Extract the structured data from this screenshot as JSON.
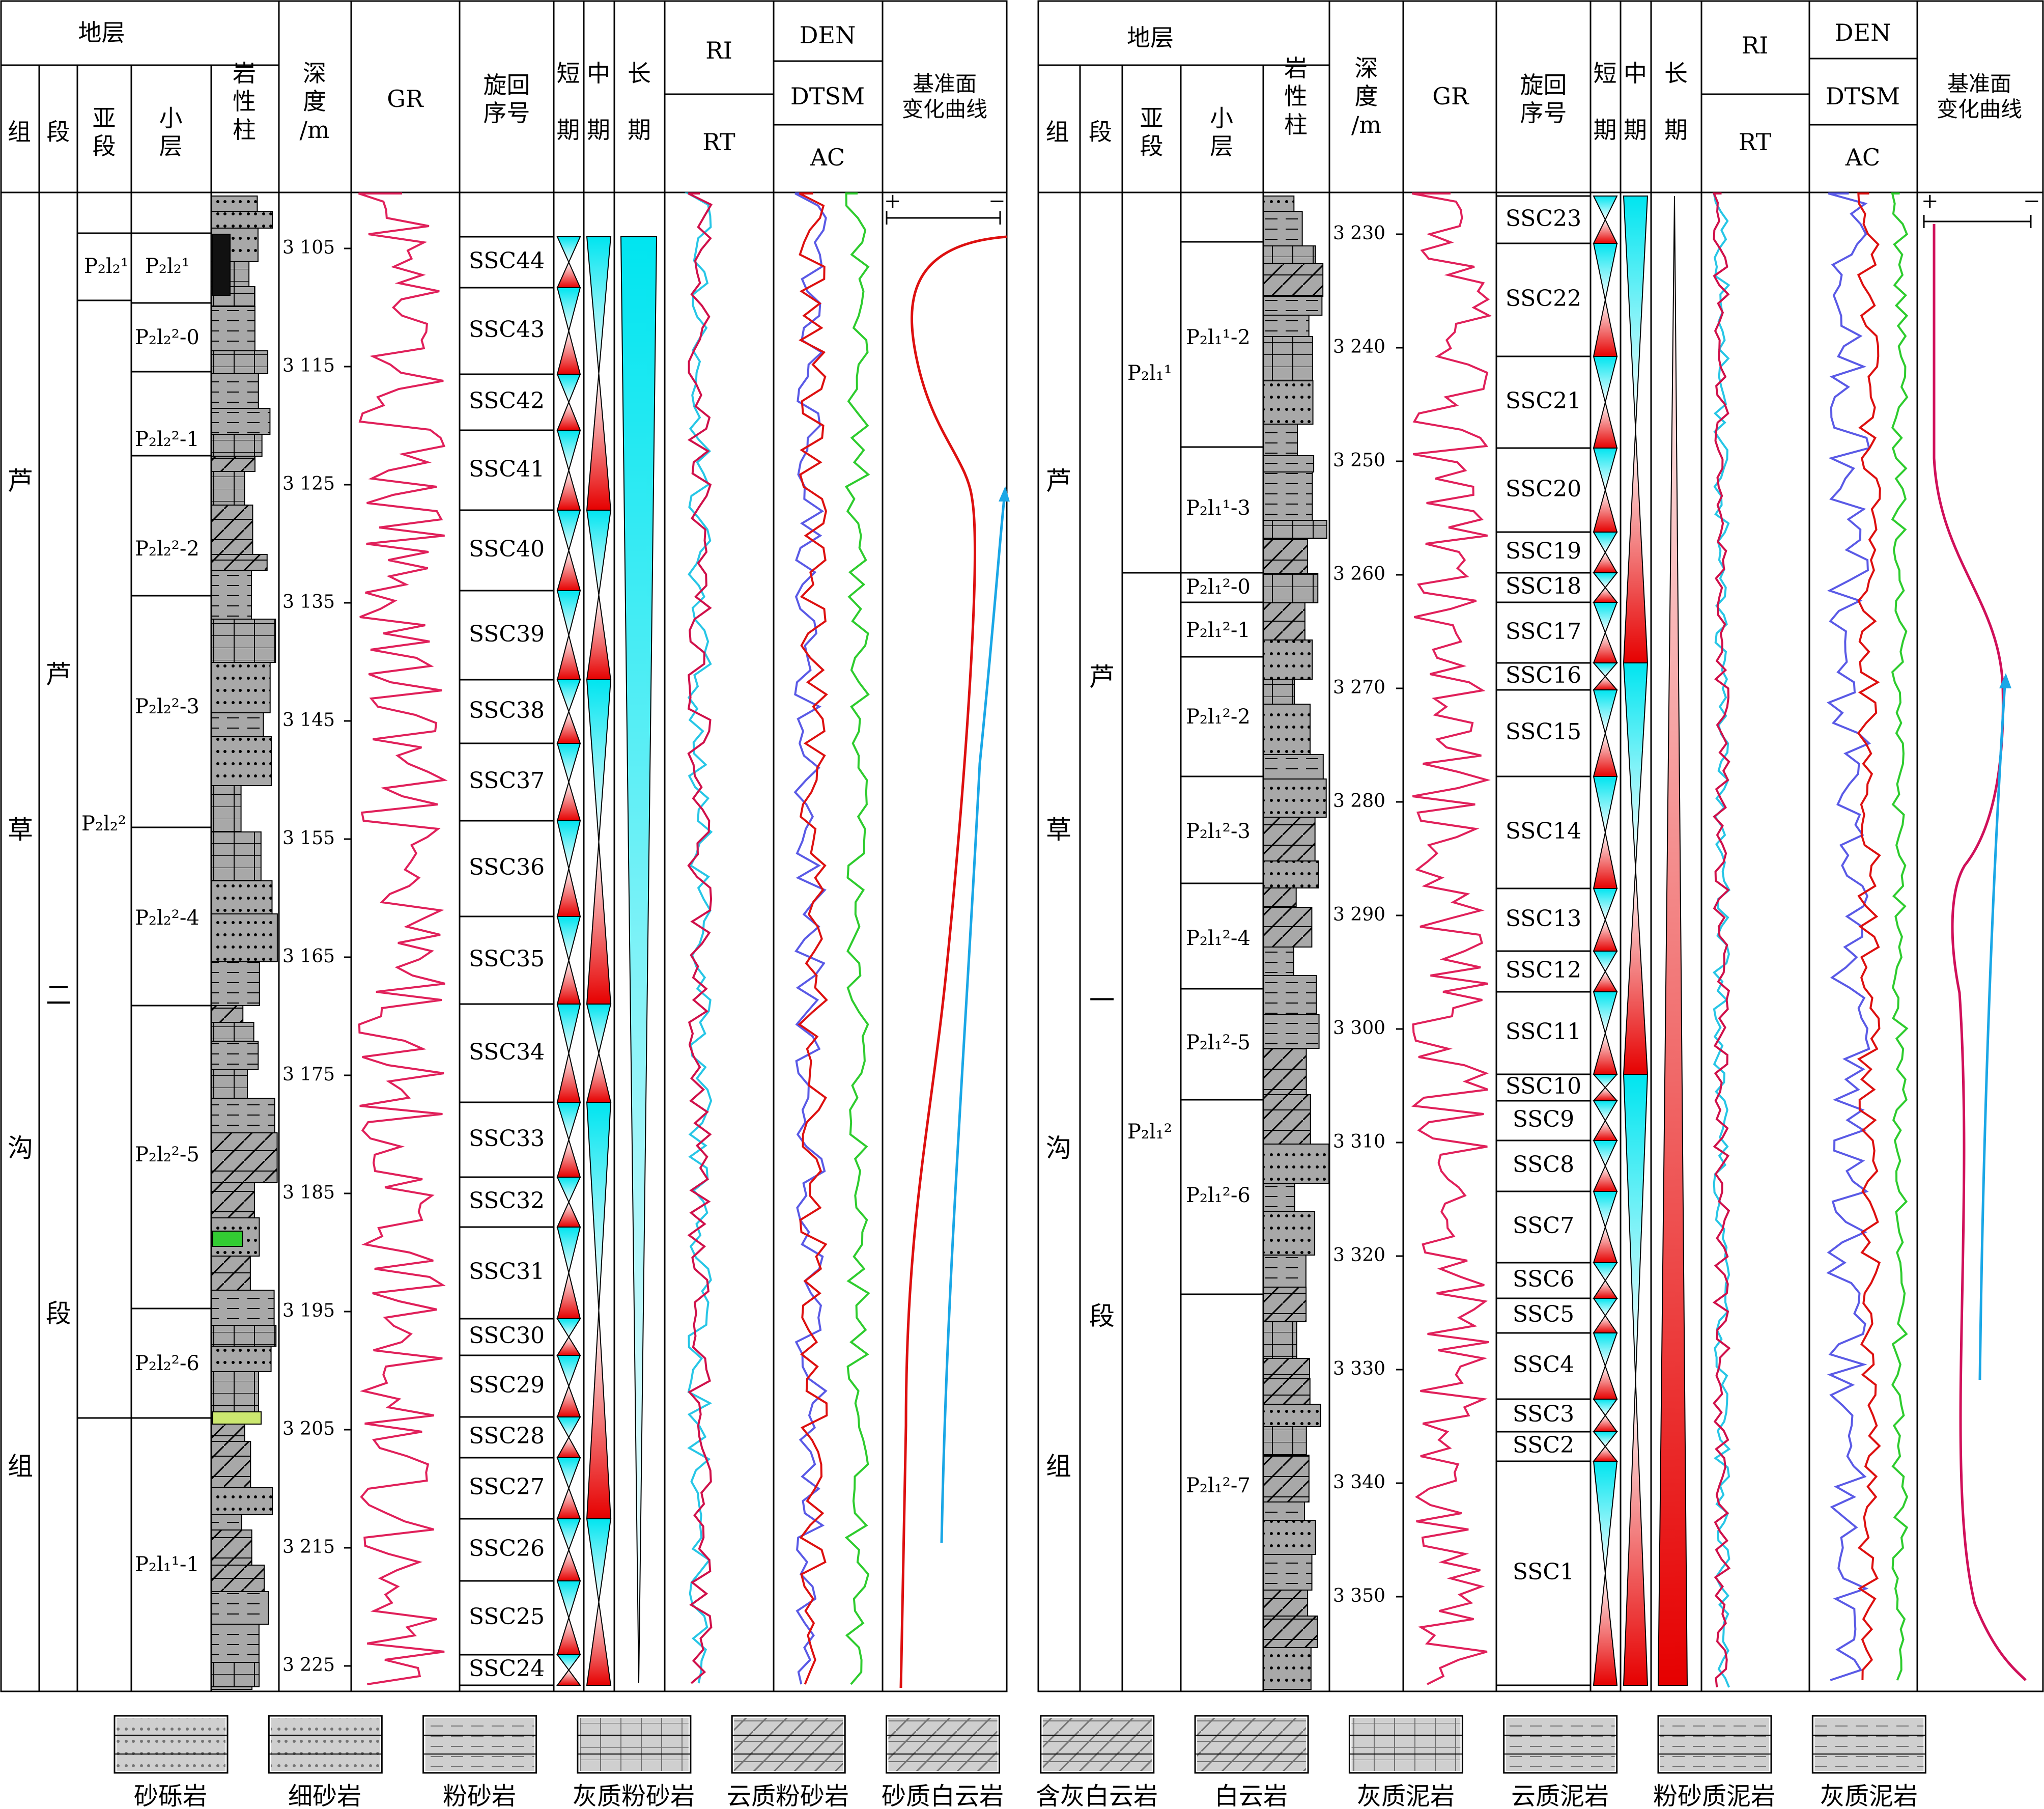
{
  "left_panel": {
    "headers": {
      "stratum": "地层",
      "formation": "组",
      "member": "段",
      "submember": "亚\n段",
      "layer": "小\n层",
      "lithology": "岩\n性\n柱",
      "depth": "深\n度\n/m",
      "gr": "GR",
      "cycle_no": "旋回\n序号",
      "short_term": "短\n\n期",
      "mid_term": "中\n\n期",
      "long_term": "长\n\n期",
      "ri": "RI",
      "rt": "RT",
      "den": "DEN",
      "dtsm": "DTSM",
      "ac": "AC",
      "base_level": "基准面\n变化曲线"
    },
    "formation_chars": [
      "芦",
      "草",
      "沟",
      "组"
    ],
    "member_chars": [
      "芦",
      "二",
      "段"
    ],
    "submembers": [
      "P₂l₂¹",
      "P₂l₂²"
    ],
    "layers": [
      "P₂l₂¹",
      "P₂l₂²-0",
      "P₂l₂²-1",
      "P₂l₂²-2",
      "P₂l₂²-3",
      "P₂l₂²-4",
      "P₂l₂²-5",
      "P₂l₂²-6",
      "P₂l₁¹-1"
    ],
    "depth_ticks": [
      "3 105",
      "3 115",
      "3 125",
      "3 135",
      "3 145",
      "3 155",
      "3 165",
      "3 175",
      "3 185",
      "3 195",
      "3 205",
      "3 215",
      "3 225"
    ],
    "cycles": [
      "SSC44",
      "SSC43",
      "SSC42",
      "SSC41",
      "SSC40",
      "SSC39",
      "SSC38",
      "SSC37",
      "SSC36",
      "SSC35",
      "SSC34",
      "SSC33",
      "SSC32",
      "SSC31",
      "SSC30",
      "SSC29",
      "SSC28",
      "SSC27",
      "SSC26",
      "SSC25",
      "SSC24"
    ],
    "plus": "+",
    "minus": "−"
  },
  "right_panel": {
    "headers": {
      "stratum": "地层",
      "formation": "组",
      "member": "段",
      "submember": "亚\n段",
      "layer": "小\n层",
      "lithology": "岩\n性\n柱",
      "depth": "深\n度\n/m",
      "gr": "GR",
      "cycle_no": "旋回\n序号",
      "short_term": "短\n\n期",
      "mid_term": "中\n\n期",
      "long_term": "长\n\n期",
      "ri": "RI",
      "rt": "RT",
      "den": "DEN",
      "dtsm": "DTSM",
      "ac": "AC",
      "base_level": "基准面\n变化曲线"
    },
    "formation_chars": [
      "芦",
      "草",
      "沟",
      "组"
    ],
    "member_chars": [
      "芦",
      "一",
      "段"
    ],
    "submembers": [
      "P₂l₁¹",
      "P₂l₁²"
    ],
    "layers": [
      "P₂l₁¹-2",
      "P₂l₁¹-3",
      "P₂l₁²-0",
      "P₂l₁²-1",
      "P₂l₁²-2",
      "P₂l₁²-3",
      "P₂l₁²-4",
      "P₂l₁²-5",
      "P₂l₁²-6",
      "P₂l₁²-7"
    ],
    "depth_ticks": [
      "3 230",
      "3 240",
      "3 250",
      "3 260",
      "3 270",
      "3 280",
      "3 290",
      "3 300",
      "3 310",
      "3 320",
      "3 330",
      "3 340",
      "3 350"
    ],
    "cycles": [
      "SSC23",
      "SSC22",
      "SSC21",
      "SSC20",
      "SSC19",
      "SSC18",
      "SSC17",
      "SSC16",
      "SSC15",
      "SSC14",
      "SSC13",
      "SSC12",
      "SSC11",
      "SSC10",
      "SSC9",
      "SSC8",
      "SSC7",
      "SSC6",
      "SSC5",
      "SSC4",
      "SSC3",
      "SSC2",
      "SSC1"
    ],
    "plus": "+",
    "minus": "−"
  },
  "legend": [
    "砂砾岩",
    "细砂岩",
    "粉砂岩",
    "灰质粉砂岩",
    "云质粉砂岩",
    "砂质白云岩",
    "含灰白云岩",
    "白云岩",
    "灰质泥岩",
    "云质泥岩",
    "粉砂质泥岩",
    "灰质泥岩"
  ],
  "colors": {
    "gr_curve": "#e0205a",
    "rt_curve": "#d0104a",
    "ri_curve": "#27c6e6",
    "den_curve": "#2ecc2e",
    "ac_curve": "#5a5ae6",
    "dtsm_curve": "#dd1010",
    "rising_phase": "#e60000",
    "falling_phase": "#00e5f0",
    "lithology_fill": "#a8a8a8",
    "base_level_curve_left": "#dd1010",
    "base_level_curve_right": "#d0105a",
    "arrow": "#1aa7e6"
  }
}
